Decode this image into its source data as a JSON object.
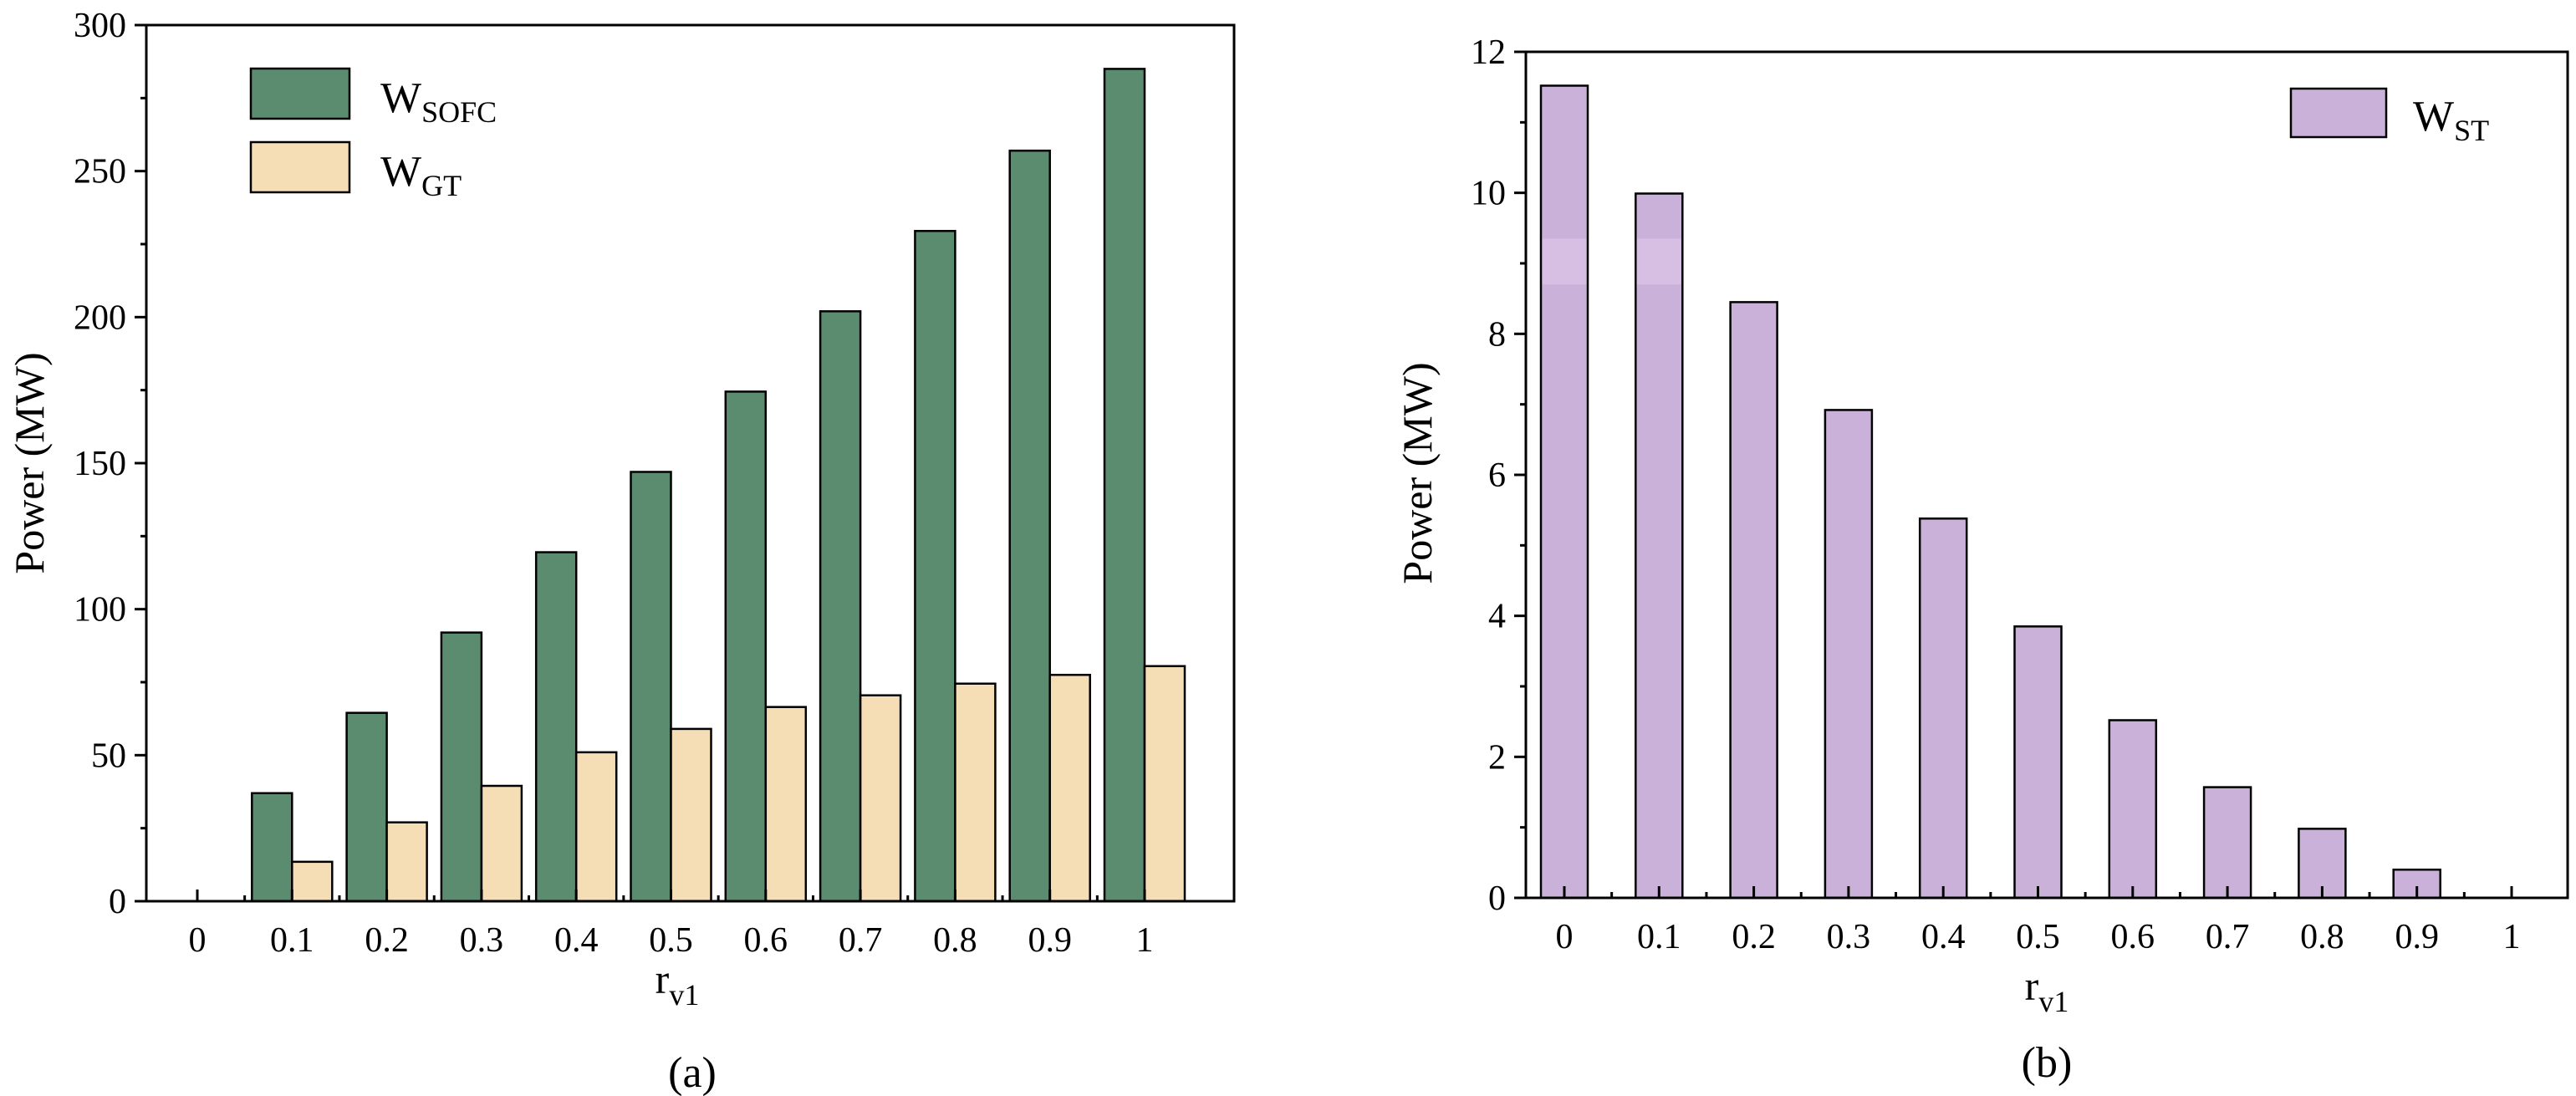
{
  "colors": {
    "sofc": "#5b8c6f",
    "gt": "#f5ddb5",
    "st": "#c9b1d9",
    "st_highlight": "#d6bfe3",
    "axis": "#000000"
  },
  "chart_data": [
    {
      "type": "bar",
      "caption": "(a)",
      "title": "",
      "xlabel": "r",
      "xlabel_sub": "v1",
      "ylabel": "Power (MW)",
      "ylim": [
        0,
        300
      ],
      "yticks": [
        0,
        50,
        100,
        150,
        200,
        250,
        300
      ],
      "ytick_labels": [
        "0",
        "50",
        "100",
        "150",
        "200",
        "250",
        "300"
      ],
      "categories": [
        "0",
        "0.1",
        "0.2",
        "0.3",
        "0.4",
        "0.5",
        "0.6",
        "0.7",
        "0.8",
        "0.9",
        "1"
      ],
      "legend_position": "top-left",
      "grid": false,
      "series": [
        {
          "name": "W",
          "name_sub": "SOFC",
          "color_key": "sofc",
          "values": [
            0,
            37,
            64.5,
            92,
            119.5,
            147,
            174.5,
            202,
            229.5,
            257,
            285
          ]
        },
        {
          "name": "W",
          "name_sub": "GT",
          "color_key": "gt",
          "values": [
            0,
            13.5,
            27,
            39.5,
            51,
            59,
            66.5,
            70.5,
            74.5,
            77.5,
            80.5
          ]
        }
      ]
    },
    {
      "type": "bar",
      "caption": "(b)",
      "title": "",
      "xlabel": "r",
      "xlabel_sub": "v1",
      "ylabel": "Power (MW)",
      "ylim": [
        0,
        12
      ],
      "yticks": [
        0,
        2,
        4,
        6,
        8,
        10,
        12
      ],
      "ytick_labels": [
        "0",
        "2",
        "4",
        "6",
        "8",
        "10",
        "12"
      ],
      "categories": [
        "0",
        "0.1",
        "0.2",
        "0.3",
        "0.4",
        "0.5",
        "0.6",
        "0.7",
        "0.8",
        "0.9",
        "1"
      ],
      "legend_position": "top-right",
      "grid": false,
      "series": [
        {
          "name": "W",
          "name_sub": "ST",
          "color_key": "st",
          "values": [
            11.52,
            9.99,
            8.45,
            6.92,
            5.38,
            3.85,
            2.52,
            1.57,
            0.98,
            0.4,
            0
          ]
        }
      ]
    }
  ]
}
